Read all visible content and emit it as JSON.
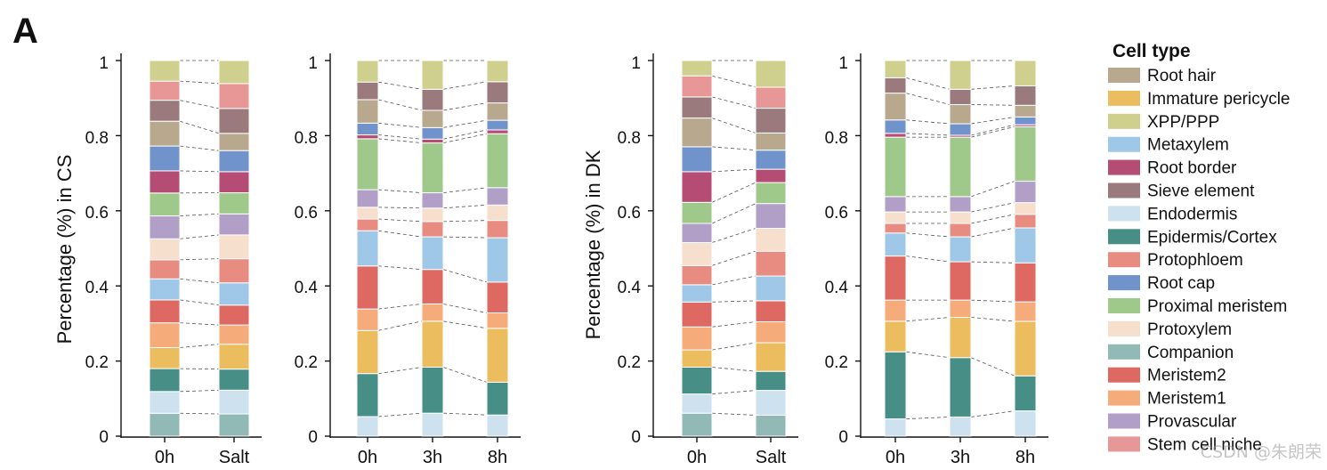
{
  "panel_letter": "A",
  "watermark": "CSDN @朱朗荣",
  "legend": {
    "title": "Cell type",
    "items": [
      {
        "label": "Root hair",
        "color": "#b8a98e"
      },
      {
        "label": "Immature pericycle",
        "color": "#ecbd5e"
      },
      {
        "label": "XPP/PPP",
        "color": "#cfcf8e"
      },
      {
        "label": "Metaxylem",
        "color": "#9ec7e8"
      },
      {
        "label": "Root border",
        "color": "#b54c74"
      },
      {
        "label": "Sieve element",
        "color": "#9b7a7e"
      },
      {
        "label": "Endodermis",
        "color": "#cde1ee"
      },
      {
        "label": "Epidermis/Cortex",
        "color": "#478f86"
      },
      {
        "label": "Protophloem",
        "color": "#e88c82"
      },
      {
        "label": "Root cap",
        "color": "#7093cc"
      },
      {
        "label": "Proximal meristem",
        "color": "#9ec98a"
      },
      {
        "label": "Protoxylem",
        "color": "#f6dfcd"
      },
      {
        "label": "Companion",
        "color": "#91bab6"
      },
      {
        "label": "Meristem2",
        "color": "#de6962"
      },
      {
        "label": "Meristem1",
        "color": "#f5ab7a"
      },
      {
        "label": "Provascular",
        "color": "#b29fc7"
      },
      {
        "label": "Stem cell niche",
        "color": "#e89797"
      }
    ]
  },
  "chart_data": [
    {
      "type": "stacked-bar",
      "ylabel": "Percentage (%) in CS",
      "ylim": [
        0,
        1
      ],
      "yticks": [
        "0",
        "0.2",
        "0.4",
        "0.6",
        "0.8",
        "1"
      ],
      "categories": [
        "0h",
        "Salt"
      ],
      "stack_order": [
        "Companion",
        "Endodermis",
        "Epidermis/Cortex",
        "Immature pericycle",
        "Meristem1",
        "Meristem2",
        "Metaxylem",
        "Protophloem",
        "Protoxylem",
        "Provascular",
        "Proximal meristem",
        "Root border",
        "Root cap",
        "Root hair",
        "Sieve element",
        "Stem cell niche",
        "XPP/PPP"
      ],
      "bars": [
        [
          0.06,
          0.057,
          0.06,
          0.055,
          0.065,
          0.06,
          0.055,
          0.05,
          0.055,
          0.06,
          0.06,
          0.058,
          0.065,
          0.065,
          0.055,
          0.05,
          0.054
        ],
        [
          0.058,
          0.062,
          0.055,
          0.065,
          0.05,
          0.052,
          0.058,
          0.063,
          0.062,
          0.055,
          0.055,
          0.055,
          0.055,
          0.045,
          0.065,
          0.065,
          0.06
        ]
      ]
    },
    {
      "type": "stacked-bar",
      "ylabel": "",
      "ylim": [
        0,
        1
      ],
      "yticks": [
        "0",
        "0.2",
        "0.4",
        "0.6",
        "0.8",
        "1"
      ],
      "categories": [
        "0h",
        "3h",
        "8h"
      ],
      "stack_order": [
        "Endodermis",
        "Epidermis/Cortex",
        "Immature pericycle",
        "Meristem1",
        "Meristem2",
        "Metaxylem",
        "Protophloem",
        "Protoxylem",
        "Provascular",
        "Proximal meristem",
        "Root border",
        "Root cap",
        "Root hair",
        "Sieve element",
        "XPP/PPP"
      ],
      "bars": [
        [
          0.05,
          0.11,
          0.11,
          0.055,
          0.11,
          0.09,
          0.03,
          0.03,
          0.045,
          0.13,
          0.01,
          0.03,
          0.06,
          0.045,
          0.055
        ],
        [
          0.06,
          0.12,
          0.12,
          0.045,
          0.09,
          0.085,
          0.04,
          0.035,
          0.04,
          0.13,
          0.01,
          0.03,
          0.045,
          0.055,
          0.075
        ],
        [
          0.055,
          0.085,
          0.14,
          0.04,
          0.08,
          0.115,
          0.045,
          0.04,
          0.045,
          0.14,
          0.01,
          0.025,
          0.045,
          0.055,
          0.055
        ]
      ]
    },
    {
      "type": "stacked-bar",
      "ylabel": "Percentage (%) in DK",
      "ylim": [
        0,
        1
      ],
      "yticks": [
        "0",
        "0.2",
        "0.4",
        "0.6",
        "0.8",
        "1"
      ],
      "categories": [
        "0h",
        "Salt"
      ],
      "stack_order": [
        "Companion",
        "Endodermis",
        "Epidermis/Cortex",
        "Immature pericycle",
        "Meristem1",
        "Meristem2",
        "Metaxylem",
        "Protophloem",
        "Protoxylem",
        "Provascular",
        "Proximal meristem",
        "Root border",
        "Root cap",
        "Root hair",
        "Sieve element",
        "Stem cell niche",
        "XPP/PPP"
      ],
      "bars": [
        [
          0.06,
          0.05,
          0.07,
          0.045,
          0.06,
          0.065,
          0.045,
          0.05,
          0.06,
          0.05,
          0.055,
          0.08,
          0.065,
          0.075,
          0.055,
          0.055,
          0.04
        ],
        [
          0.055,
          0.065,
          0.05,
          0.075,
          0.055,
          0.055,
          0.065,
          0.065,
          0.06,
          0.065,
          0.055,
          0.035,
          0.05,
          0.045,
          0.065,
          0.055,
          0.07
        ]
      ]
    },
    {
      "type": "stacked-bar",
      "ylabel": "",
      "ylim": [
        0,
        1
      ],
      "yticks": [
        "0",
        "0.2",
        "0.4",
        "0.6",
        "0.8",
        "1"
      ],
      "categories": [
        "0h",
        "3h",
        "8h"
      ],
      "stack_order": [
        "Endodermis",
        "Epidermis/Cortex",
        "Immature pericycle",
        "Meristem1",
        "Meristem2",
        "Metaxylem",
        "Protophloem",
        "Protoxylem",
        "Provascular",
        "Proximal meristem",
        "Root border",
        "Root cap",
        "Root hair",
        "Sieve element",
        "XPP/PPP"
      ],
      "bars": [
        [
          0.045,
          0.175,
          0.08,
          0.055,
          0.115,
          0.06,
          0.025,
          0.03,
          0.04,
          0.155,
          0.01,
          0.035,
          0.07,
          0.04,
          0.045
        ],
        [
          0.05,
          0.155,
          0.105,
          0.045,
          0.1,
          0.065,
          0.035,
          0.03,
          0.04,
          0.155,
          0.005,
          0.03,
          0.05,
          0.04,
          0.075
        ],
        [
          0.065,
          0.09,
          0.14,
          0.05,
          0.1,
          0.09,
          0.035,
          0.03,
          0.055,
          0.14,
          0.005,
          0.02,
          0.03,
          0.05,
          0.065
        ]
      ]
    }
  ]
}
